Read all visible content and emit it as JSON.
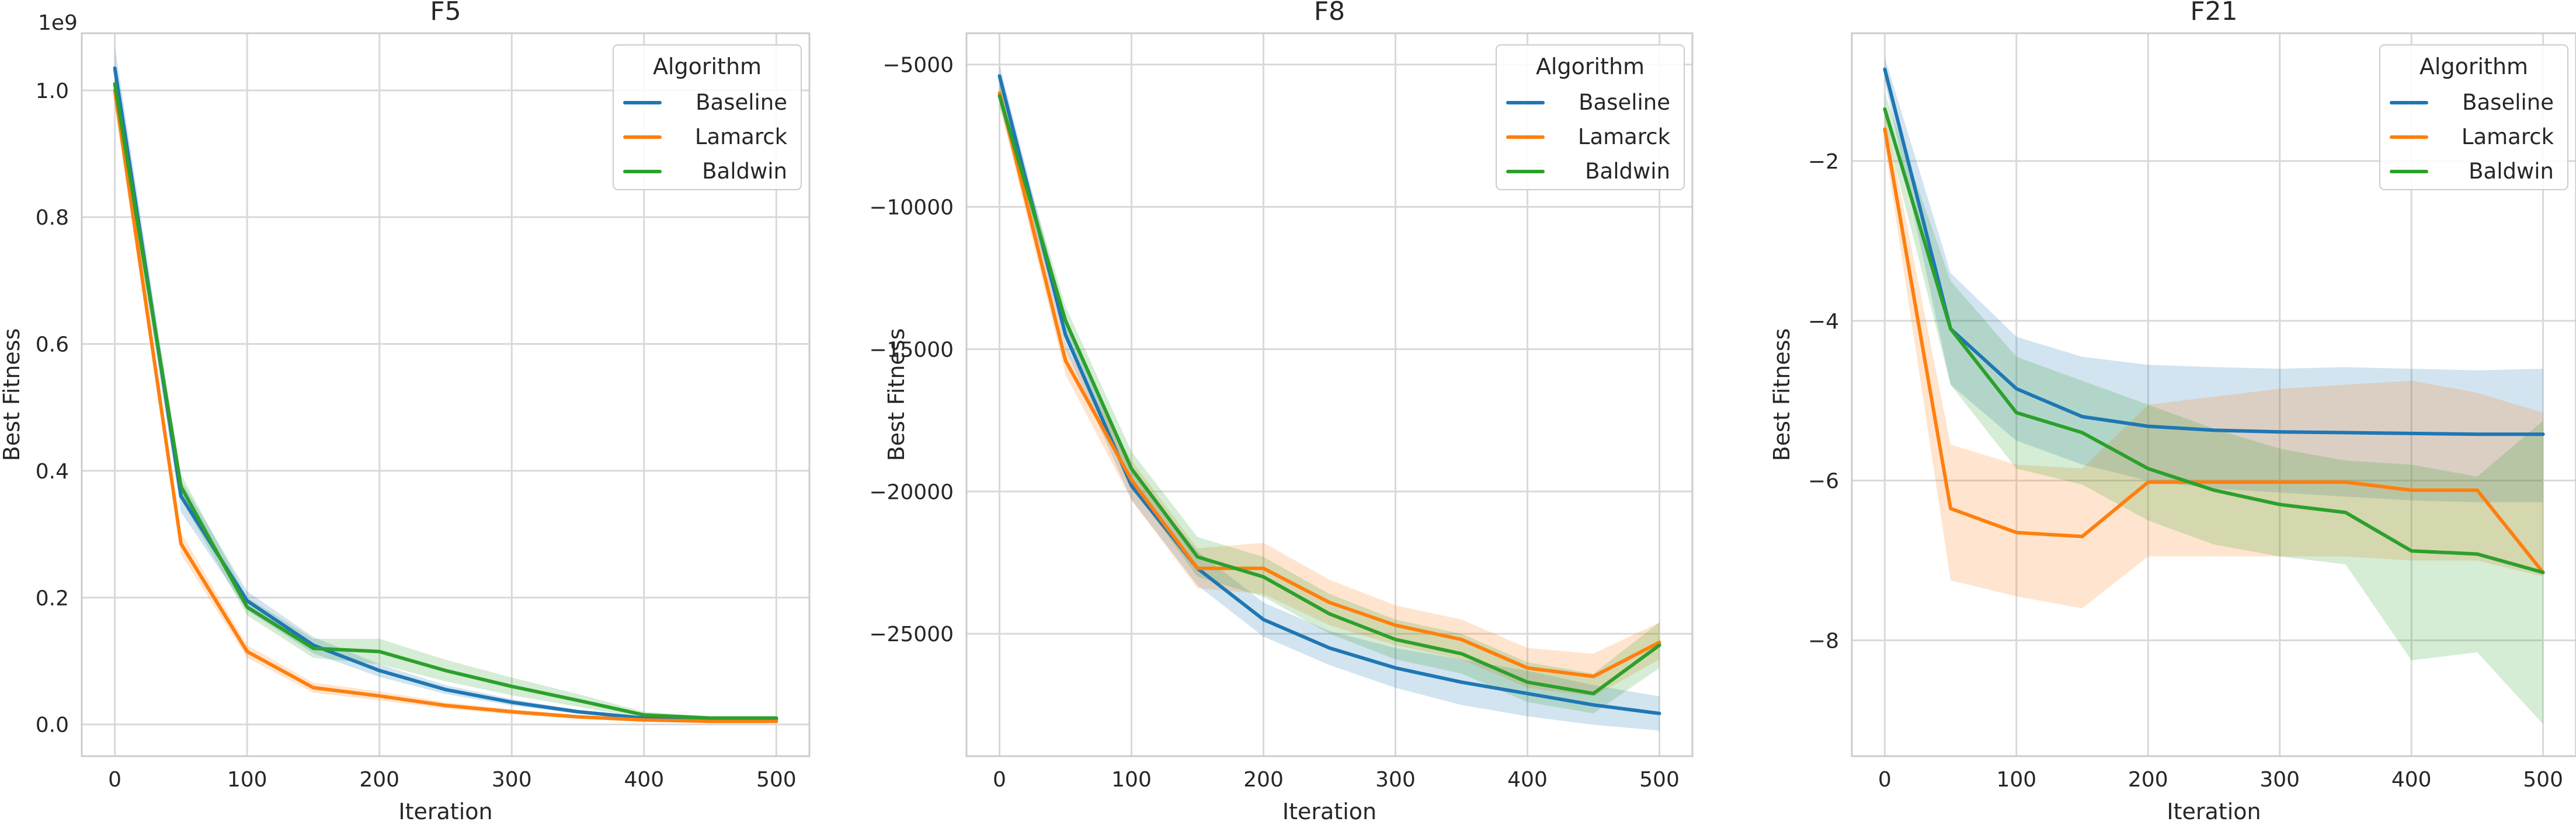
{
  "colors": {
    "Baseline": "#1f77b4",
    "Lamarck": "#ff7f0e",
    "Baldwin": "#2ca02c",
    "grid": "#d9d9d9",
    "spine": "#cccccc"
  },
  "chart_data": [
    {
      "type": "line",
      "title": "F5",
      "xlabel": "Iteration",
      "ylabel": "Best Fitness",
      "offset_label": "1e9",
      "scale": 1000000000,
      "xlim": [
        -25,
        525
      ],
      "ylim": [
        -50000000,
        1090000000
      ],
      "xticks": [
        0,
        100,
        200,
        300,
        400,
        500
      ],
      "yticks": [
        0,
        200000000,
        400000000,
        600000000,
        800000000,
        1000000000
      ],
      "ytick_labels": [
        "0.0",
        "0.2",
        "0.4",
        "0.6",
        "0.8",
        "1.0"
      ],
      "legend": {
        "title": "Algorithm",
        "position": "top-right"
      },
      "x": [
        0,
        50,
        100,
        150,
        200,
        250,
        300,
        350,
        400,
        450,
        500
      ],
      "series": [
        {
          "name": "Baseline",
          "values": [
            1035000000,
            360000000,
            195000000,
            125000000,
            85000000,
            55000000,
            35000000,
            20000000,
            10000000,
            8000000,
            8000000
          ],
          "lower": [
            1000000000,
            335000000,
            180000000,
            112000000,
            75000000,
            48000000,
            30000000,
            17000000,
            8000000,
            6000000,
            6000000
          ],
          "upper": [
            1070000000,
            385000000,
            210000000,
            138000000,
            95000000,
            62000000,
            40000000,
            23000000,
            12000000,
            10000000,
            10000000
          ]
        },
        {
          "name": "Lamarck",
          "values": [
            1000000000,
            285000000,
            115000000,
            58000000,
            45000000,
            30000000,
            20000000,
            12000000,
            7000000,
            5000000,
            5000000
          ],
          "lower": [
            975000000,
            268000000,
            105000000,
            50000000,
            38000000,
            25000000,
            16000000,
            9000000,
            5000000,
            3000000,
            3000000
          ],
          "upper": [
            1025000000,
            302000000,
            125000000,
            66000000,
            52000000,
            35000000,
            24000000,
            15000000,
            9000000,
            7000000,
            7000000
          ]
        },
        {
          "name": "Baldwin",
          "values": [
            1010000000,
            375000000,
            185000000,
            120000000,
            115000000,
            85000000,
            60000000,
            38000000,
            15000000,
            10000000,
            10000000
          ],
          "lower": [
            985000000,
            355000000,
            172000000,
            105000000,
            95000000,
            68000000,
            46000000,
            28000000,
            10000000,
            7000000,
            7000000
          ],
          "upper": [
            1035000000,
            395000000,
            200000000,
            135000000,
            135000000,
            102000000,
            74000000,
            48000000,
            20000000,
            13000000,
            13000000
          ]
        }
      ]
    },
    {
      "type": "line",
      "title": "F8",
      "xlabel": "Iteration",
      "ylabel": "Best Fitness",
      "offset_label": "",
      "scale": 1,
      "xlim": [
        -25,
        525
      ],
      "ylim": [
        -29300,
        -3900
      ],
      "xticks": [
        0,
        100,
        200,
        300,
        400,
        500
      ],
      "yticks": [
        -25000,
        -20000,
        -15000,
        -10000,
        -5000
      ],
      "ytick_labels": [
        "−25000",
        "−20000",
        "−15000",
        "−10000",
        "−5000"
      ],
      "legend": {
        "title": "Algorithm",
        "position": "top-right"
      },
      "x": [
        0,
        50,
        100,
        150,
        200,
        250,
        300,
        350,
        400,
        450,
        500
      ],
      "series": [
        {
          "name": "Baseline",
          "values": [
            -5400,
            -14500,
            -19800,
            -22700,
            -24500,
            -25500,
            -26200,
            -26700,
            -27100,
            -27500,
            -27800
          ],
          "lower": [
            -5800,
            -15000,
            -20300,
            -23300,
            -25100,
            -26100,
            -26900,
            -27500,
            -27900,
            -28200,
            -28400
          ],
          "upper": [
            -5000,
            -14000,
            -19300,
            -22100,
            -23900,
            -24900,
            -25500,
            -25900,
            -26300,
            -26800,
            -27200
          ]
        },
        {
          "name": "Lamarck",
          "values": [
            -6000,
            -15400,
            -19600,
            -22700,
            -22700,
            -23900,
            -24700,
            -25200,
            -26200,
            -26500,
            -25300
          ],
          "lower": [
            -6400,
            -15900,
            -20300,
            -23400,
            -23600,
            -24700,
            -25400,
            -25900,
            -26900,
            -27200,
            -25900
          ],
          "upper": [
            -5600,
            -14900,
            -18900,
            -22000,
            -21800,
            -23100,
            -24000,
            -24500,
            -25500,
            -25700,
            -24600
          ]
        },
        {
          "name": "Baldwin",
          "values": [
            -6100,
            -14000,
            -19200,
            -22300,
            -23000,
            -24300,
            -25200,
            -25700,
            -26700,
            -27100,
            -25400
          ],
          "lower": [
            -6500,
            -14500,
            -19800,
            -23000,
            -23700,
            -25000,
            -25900,
            -26400,
            -27400,
            -27800,
            -26200
          ],
          "upper": [
            -5700,
            -13500,
            -18600,
            -21600,
            -22300,
            -23600,
            -24500,
            -25000,
            -26000,
            -26400,
            -24600
          ]
        }
      ]
    },
    {
      "type": "line",
      "title": "F21",
      "xlabel": "Iteration",
      "ylabel": "Best Fitness",
      "offset_label": "",
      "scale": 1,
      "xlim": [
        -25,
        525
      ],
      "ylim": [
        -9.45,
        -0.4
      ],
      "xticks": [
        0,
        100,
        200,
        300,
        400,
        500
      ],
      "yticks": [
        -8,
        -6,
        -4,
        -2
      ],
      "ytick_labels": [
        "−8",
        "−6",
        "−4",
        "−2"
      ],
      "legend": {
        "title": "Algorithm",
        "position": "top-right"
      },
      "x": [
        0,
        50,
        100,
        150,
        200,
        250,
        300,
        350,
        400,
        450,
        500
      ],
      "series": [
        {
          "name": "Baseline",
          "values": [
            -0.85,
            -4.1,
            -4.85,
            -5.2,
            -5.32,
            -5.37,
            -5.39,
            -5.4,
            -5.41,
            -5.42,
            -5.42
          ],
          "lower": [
            -1.0,
            -4.8,
            -5.5,
            -5.8,
            -6.0,
            -6.1,
            -6.15,
            -6.2,
            -6.25,
            -6.27,
            -6.27
          ],
          "upper": [
            -0.7,
            -3.4,
            -4.2,
            -4.45,
            -4.55,
            -4.58,
            -4.6,
            -4.58,
            -4.6,
            -4.62,
            -4.6
          ]
        },
        {
          "name": "Lamarck",
          "values": [
            -1.6,
            -6.35,
            -6.65,
            -6.7,
            -6.02,
            -6.02,
            -6.02,
            -6.02,
            -6.12,
            -6.12,
            -7.15
          ],
          "lower": [
            -1.8,
            -7.25,
            -7.45,
            -7.6,
            -6.95,
            -6.95,
            -6.95,
            -6.95,
            -7.0,
            -7.0,
            -7.2
          ],
          "upper": [
            -1.4,
            -5.55,
            -5.8,
            -5.85,
            -5.05,
            -4.95,
            -4.85,
            -4.8,
            -4.75,
            -4.9,
            -5.15
          ]
        },
        {
          "name": "Baldwin",
          "values": [
            -1.35,
            -4.1,
            -5.15,
            -5.4,
            -5.85,
            -6.12,
            -6.3,
            -6.4,
            -6.88,
            -6.92,
            -7.15
          ],
          "lower": [
            -1.55,
            -4.8,
            -5.85,
            -6.05,
            -6.5,
            -6.8,
            -6.95,
            -7.05,
            -8.25,
            -8.15,
            -9.05
          ],
          "upper": [
            -1.15,
            -3.5,
            -4.45,
            -4.75,
            -5.05,
            -5.35,
            -5.6,
            -5.75,
            -5.8,
            -5.95,
            -5.25
          ]
        }
      ]
    }
  ]
}
